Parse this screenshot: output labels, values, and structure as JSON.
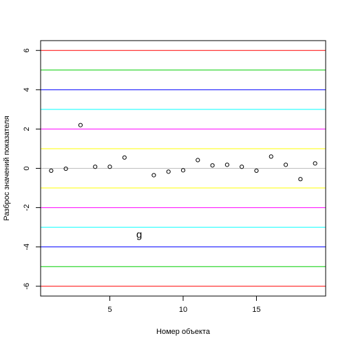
{
  "chart_data": {
    "type": "scatter",
    "xlabel": "Номер объекта",
    "ylabel": "Разброс значений показателя",
    "xlim": [
      0.28,
      19.72
    ],
    "ylim": [
      -6.5,
      6.5
    ],
    "x_ticks": [
      5,
      10,
      15
    ],
    "y_ticks": [
      -6,
      -4,
      -2,
      0,
      2,
      4,
      6
    ],
    "x": [
      1,
      2,
      3,
      4,
      5,
      6,
      7,
      8,
      9,
      10,
      11,
      12,
      13,
      14,
      15,
      16,
      17,
      18,
      19
    ],
    "y": [
      -0.12,
      -0.02,
      2.2,
      0.08,
      0.08,
      0.55,
      null,
      -0.35,
      -0.17,
      -0.1,
      0.42,
      0.15,
      0.18,
      0.08,
      -0.12,
      0.6,
      0.18,
      -0.55,
      0.25
    ],
    "annotation": {
      "text": "g",
      "x": 7,
      "y": -3.4
    },
    "hlines": [
      {
        "y": 6,
        "color": "#ff0000"
      },
      {
        "y": 5,
        "color": "#00cd00"
      },
      {
        "y": 4,
        "color": "#0000ff"
      },
      {
        "y": 3,
        "color": "#00ffff"
      },
      {
        "y": 2,
        "color": "#ff00ff"
      },
      {
        "y": 1,
        "color": "#ffff00"
      },
      {
        "y": 0,
        "color": "#bebebe"
      },
      {
        "y": -1,
        "color": "#ffff00"
      },
      {
        "y": -2,
        "color": "#ff00ff"
      },
      {
        "y": -3,
        "color": "#00ffff"
      },
      {
        "y": -4,
        "color": "#0000ff"
      },
      {
        "y": -5,
        "color": "#00cd00"
      },
      {
        "y": -6,
        "color": "#ff0000"
      }
    ],
    "grid": false,
    "legend": "none"
  }
}
